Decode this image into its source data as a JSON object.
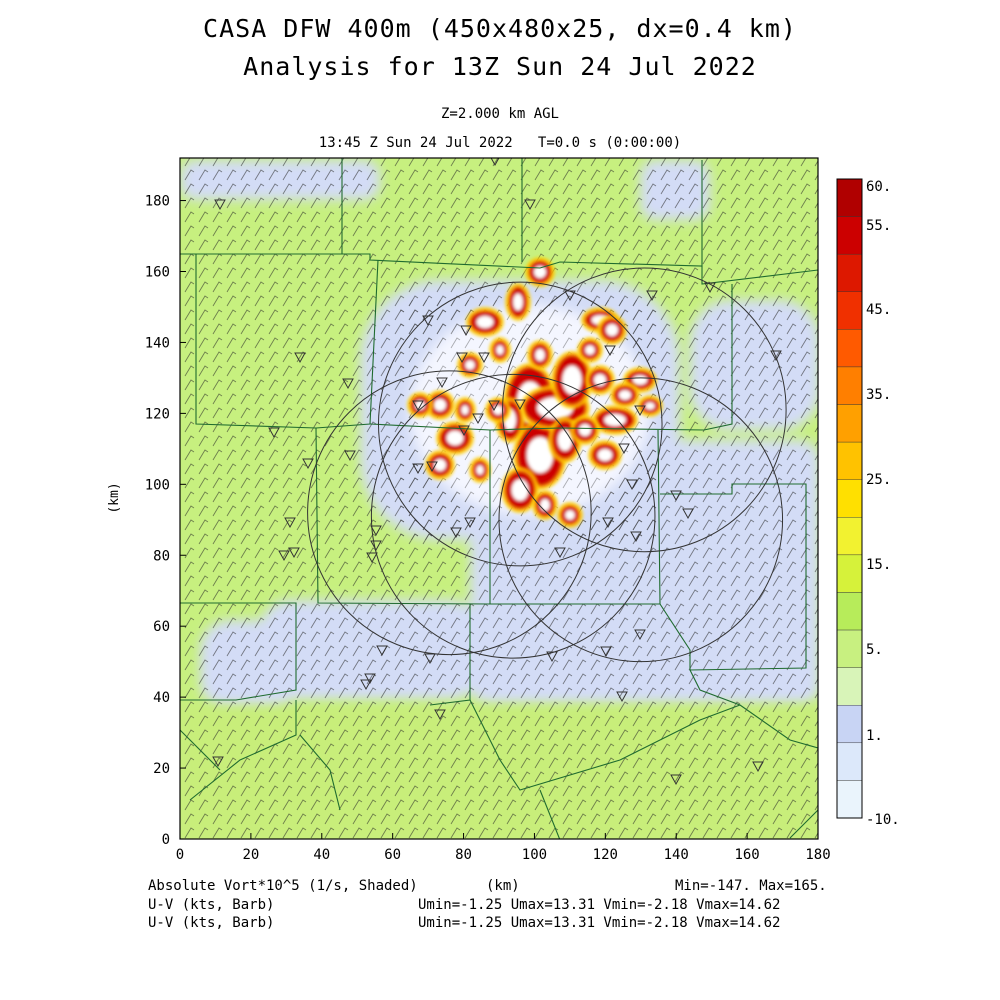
{
  "header": {
    "title_line1": "CASA DFW 400m (450x480x25, dx=0.4 km)",
    "title_line2": "Analysis for 13Z Sun 24 Jul 2022",
    "level": "Z=2.000 km AGL",
    "valid_time": "13:45 Z Sun 24 Jul 2022   T=0.0 s (0:00:00)"
  },
  "footer": {
    "field_label": "Absolute Vort*10^5 (1/s, Shaded)",
    "xunit": "(km)",
    "minmax": "Min=-147. Max=165.",
    "barb_label_1": "U-V (kts, Barb)",
    "barb_stats_1": "Umin=-1.25 Umax=13.31 Vmin=-2.18 Vmax=14.62",
    "barb_label_2": "U-V (kts, Barb)",
    "barb_stats_2": "Umin=-1.25 Umax=13.31 Vmin=-2.18 Vmax=14.62"
  },
  "chart_data": {
    "type": "heatmap",
    "xlabel": "",
    "ylabel": "(km)",
    "xlim": [
      0,
      180
    ],
    "ylim": [
      0,
      192
    ],
    "xticks": [
      "0",
      "20",
      "40",
      "60",
      "80",
      "100",
      "120",
      "140",
      "160",
      "180"
    ],
    "yticks": [
      "0",
      "20",
      "40",
      "60",
      "80",
      "100",
      "120",
      "140",
      "160",
      "180"
    ],
    "colorbar": {
      "labels": [
        "60.",
        "55.",
        "45.",
        "35.",
        "25.",
        "15.",
        "5.",
        "1.",
        "-10."
      ],
      "colors": [
        "#b00000",
        "#cc0000",
        "#dd1800",
        "#f03000",
        "#ff5a00",
        "#ff7f00",
        "#ffa000",
        "#ffc200",
        "#ffe000",
        "#f2f230",
        "#d6f23a",
        "#b7ec5a",
        "#c8f080",
        "#d8f4b8",
        "#c8d4f4",
        "#dce8fa",
        "#eaf4fc"
      ]
    },
    "radar_rings_center_km": [
      [
        96,
        117
      ],
      [
        76,
        92
      ],
      [
        94,
        91
      ],
      [
        131,
        121
      ],
      [
        130,
        90
      ]
    ],
    "radar_ring_radius_km": 40,
    "vorticity_max": 165,
    "vorticity_min": -147
  },
  "colors": {
    "background_green": "#c7f07f",
    "pale_blue": "#d4ddf6",
    "white_core": "#ffffff",
    "county_lines": "#1f6b2f",
    "barb": "#000000"
  }
}
